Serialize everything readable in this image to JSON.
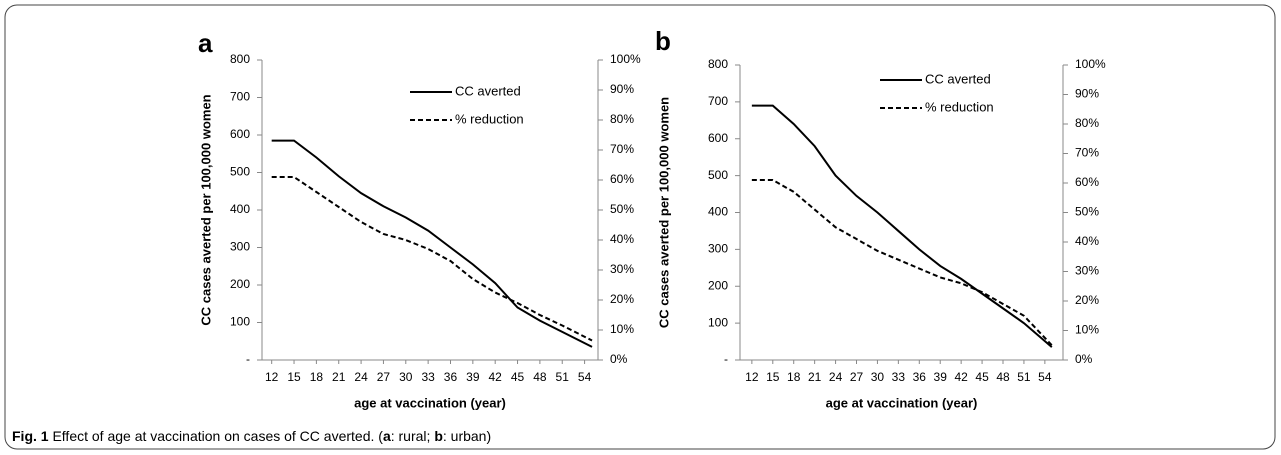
{
  "chart_data": [
    {
      "type": "line",
      "panel_label": "a",
      "y_label": "CC cases  averted  per 100,000 women",
      "x_label": "age at vaccination (year)",
      "x": [
        12,
        15,
        18,
        21,
        24,
        27,
        30,
        33,
        36,
        39,
        42,
        45,
        48,
        51,
        55
      ],
      "xlim": [
        10.7,
        55.8
      ],
      "xticks": [
        12,
        15,
        18,
        21,
        24,
        27,
        30,
        33,
        36,
        39,
        42,
        45,
        48,
        51,
        54
      ],
      "ylim": [
        0,
        800
      ],
      "yticks": [
        {
          "value": 0,
          "label": "-"
        },
        100,
        200,
        300,
        400,
        500,
        600,
        700,
        800
      ],
      "y2lim": [
        0,
        100
      ],
      "y2ticks": [
        {
          "value": 0,
          "label": "0%"
        },
        {
          "value": 10,
          "label": "10%"
        },
        {
          "value": 20,
          "label": "20%"
        },
        {
          "value": 30,
          "label": "30%"
        },
        {
          "value": 40,
          "label": "40%"
        },
        {
          "value": 50,
          "label": "50%"
        },
        {
          "value": 60,
          "label": "60%"
        },
        {
          "value": 70,
          "label": "70%"
        },
        {
          "value": 80,
          "label": "80%"
        },
        {
          "value": 90,
          "label": "90%"
        },
        {
          "value": 100,
          "label": "100%"
        }
      ],
      "legend": "upper right",
      "series": [
        {
          "name": "CC averted",
          "color": "#000000",
          "dash": false,
          "values": [
            585,
            585,
            540,
            490,
            445,
            410,
            380,
            345,
            300,
            255,
            205,
            140,
            105,
            75,
            35
          ]
        },
        {
          "name": "% reduction",
          "color": "#000000",
          "dash": true,
          "axis": "y2",
          "values": [
            61,
            61,
            56,
            51,
            46,
            42,
            40,
            37,
            33,
            27,
            22.5,
            19,
            15,
            11.5,
            6.5
          ]
        }
      ]
    },
    {
      "type": "line",
      "panel_label": "b",
      "y_label": "CC cases averted per 100,000 women",
      "x_label": "age at vaccination (year)",
      "x": [
        12,
        15,
        18,
        21,
        24,
        27,
        30,
        33,
        36,
        39,
        42,
        45,
        48,
        51,
        55
      ],
      "xlim": [
        10.3,
        56.6
      ],
      "xticks": [
        12,
        15,
        18,
        21,
        24,
        27,
        30,
        33,
        36,
        39,
        42,
        45,
        48,
        51,
        54
      ],
      "ylim": [
        0,
        800
      ],
      "yticks": [
        {
          "value": 0,
          "label": "-"
        },
        100,
        200,
        300,
        400,
        500,
        600,
        700,
        800
      ],
      "y2lim": [
        0,
        100
      ],
      "y2ticks": [
        {
          "value": 0,
          "label": "0%"
        },
        {
          "value": 10,
          "label": "10%"
        },
        {
          "value": 20,
          "label": "20%"
        },
        {
          "value": 30,
          "label": "30%"
        },
        {
          "value": 40,
          "label": "40%"
        },
        {
          "value": 50,
          "label": "50%"
        },
        {
          "value": 60,
          "label": "60%"
        },
        {
          "value": 70,
          "label": "70%"
        },
        {
          "value": 80,
          "label": "80%"
        },
        {
          "value": 90,
          "label": "90%"
        },
        {
          "value": 100,
          "label": "100%"
        }
      ],
      "legend": "upper right",
      "series": [
        {
          "name": "CC averted",
          "color": "#000000",
          "dash": false,
          "values": [
            690,
            690,
            640,
            580,
            500,
            445,
            400,
            350,
            300,
            255,
            220,
            180,
            140,
            100,
            35
          ]
        },
        {
          "name": "% reduction",
          "color": "#000000",
          "dash": true,
          "axis": "y2",
          "values": [
            61,
            61,
            57,
            51,
            45,
            41,
            37,
            34,
            31,
            28,
            26,
            23,
            19,
            15,
            5
          ]
        }
      ]
    }
  ],
  "caption": [
    {
      "text": "Fig. 1",
      "bold": true
    },
    {
      "text": " Effect of age at vaccination on cases of CC averted. (",
      "bold": false
    },
    {
      "text": "a",
      "bold": true
    },
    {
      "text": ": rural; ",
      "bold": false
    },
    {
      "text": "b",
      "bold": true
    },
    {
      "text": ": urban)",
      "bold": false
    }
  ]
}
